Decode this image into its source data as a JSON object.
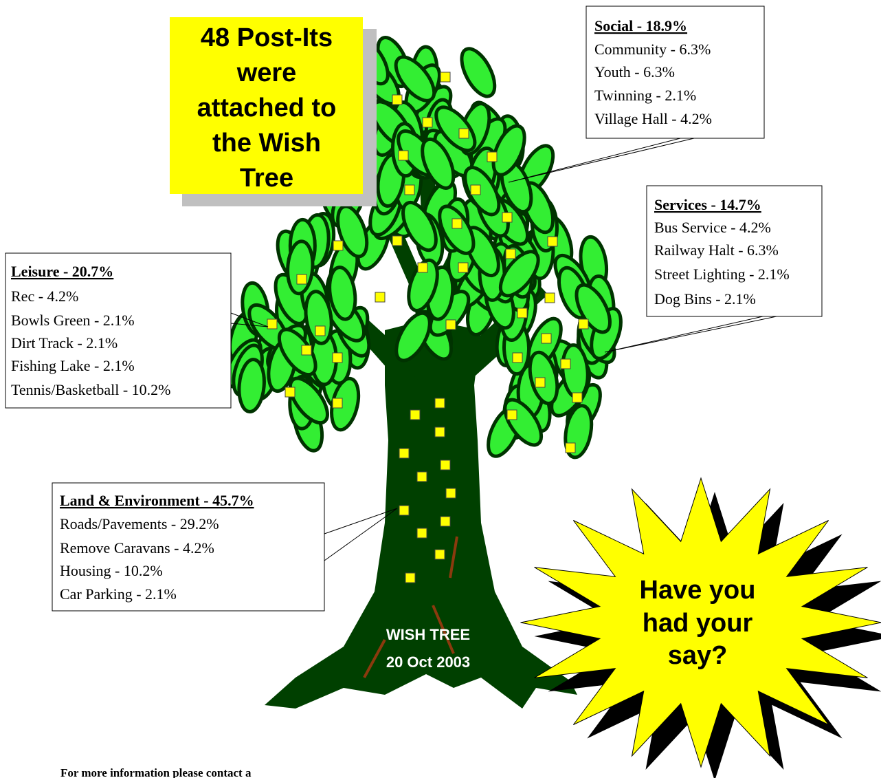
{
  "header": {
    "lines": [
      "48 Post-Its",
      "were",
      "attached to",
      "the Wish",
      "Tree"
    ]
  },
  "callouts": {
    "social": {
      "title": "Social - 18.9%",
      "items": [
        "Community - 6.3%",
        "Youth - 6.3%",
        "Twinning - 2.1%",
        "Village Hall - 4.2%"
      ]
    },
    "services": {
      "title": "Services - 14.7%",
      "items": [
        "Bus Service - 4.2%",
        "Railway Halt - 6.3%",
        "Street Lighting - 2.1%",
        "Dog Bins - 2.1%"
      ]
    },
    "leisure": {
      "title": "Leisure - 20.7%",
      "items": [
        "Rec - 4.2%",
        "Bowls Green - 2.1%",
        "Dirt Track - 2.1%",
        "Fishing Lake - 2.1%",
        "Tennis/Basketball - 10.2%"
      ]
    },
    "land": {
      "title": "Land & Environment - 45.7%",
      "items": [
        "Roads/Pavements - 29.2%",
        "Remove Caravans - 4.2%",
        "Housing - 10.2%",
        "Car Parking - 2.1%"
      ]
    }
  },
  "tree_label": {
    "lines": [
      "WISH TREE",
      "20 Oct 2003"
    ]
  },
  "starburst": {
    "lines": [
      "Have you",
      "had your",
      "say?"
    ]
  },
  "footer": {
    "text": "For more information please contact a"
  }
}
